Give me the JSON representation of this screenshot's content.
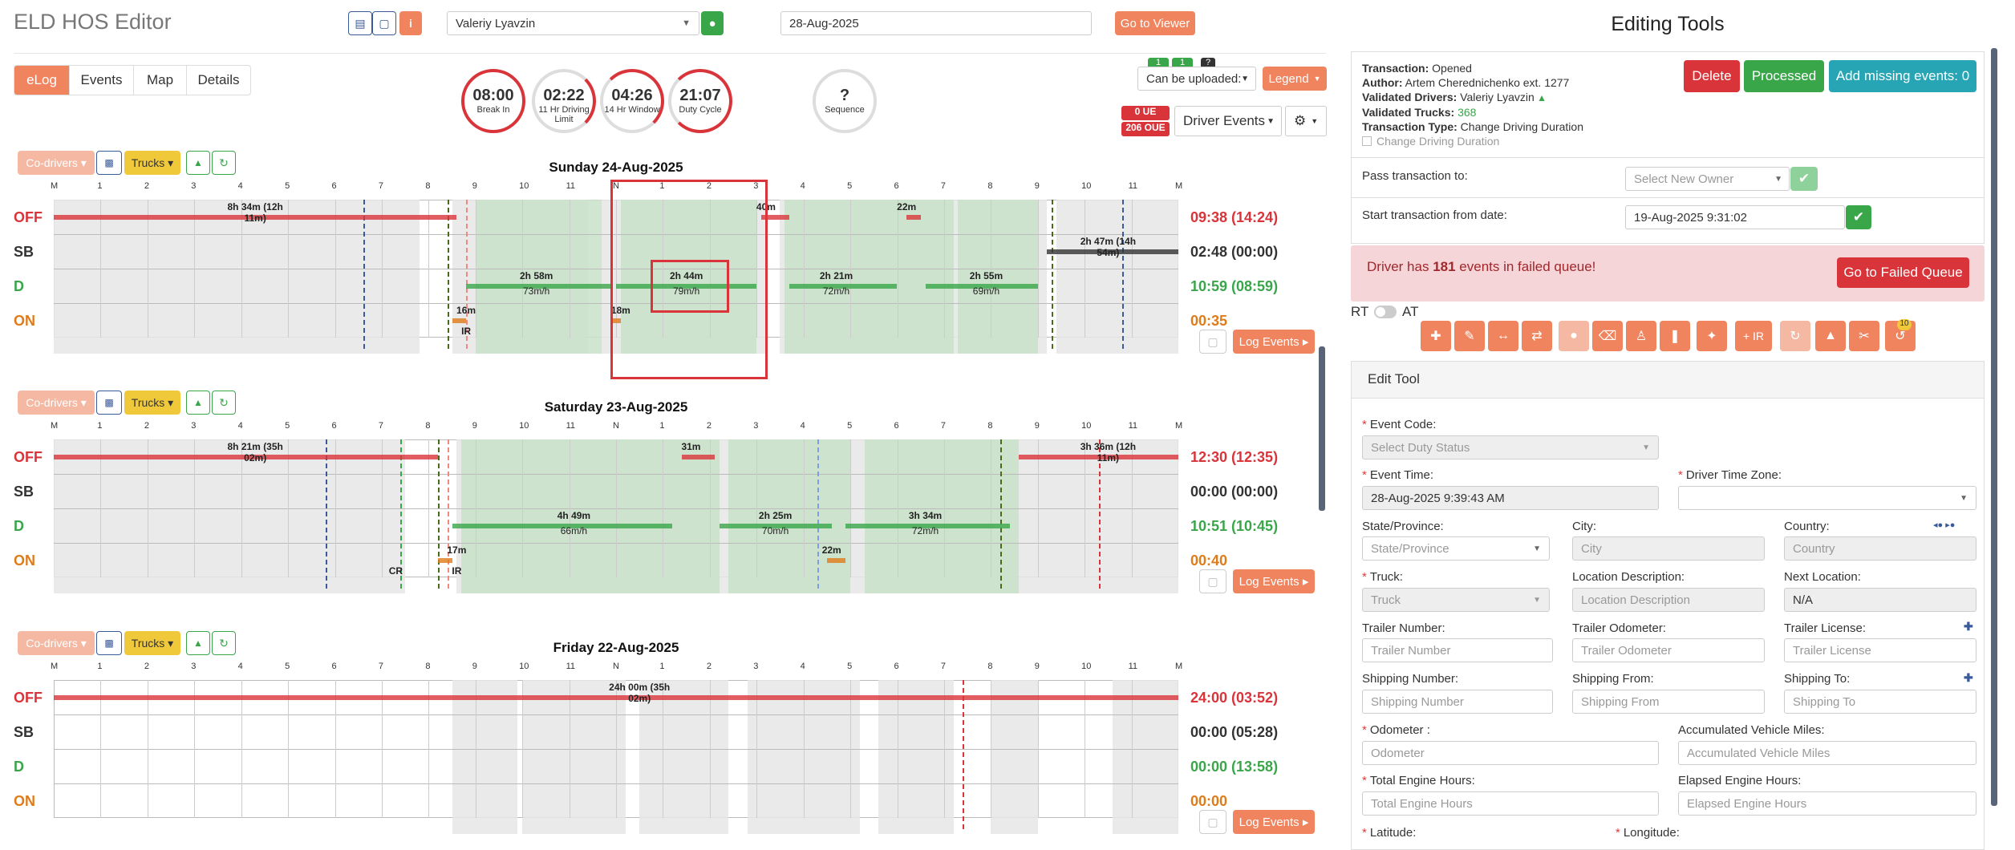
{
  "header": {
    "title": "ELD HOS Editor",
    "driver_select": "Valeriy Lyavzin",
    "date_input": "28-Aug-2025",
    "go_viewer": "Go to Viewer"
  },
  "tabs": [
    "eLog",
    "Events",
    "Map",
    "Details"
  ],
  "counters": [
    {
      "value": "08:00",
      "label": "Break In"
    },
    {
      "value": "02:22",
      "label": "11 Hr Driving Limit"
    },
    {
      "value": "04:26",
      "label": "14 Hr Window"
    },
    {
      "value": "21:07",
      "label": "Duty Cycle"
    },
    {
      "value": "?",
      "label": "Sequence"
    }
  ],
  "upload": {
    "badge1": "1",
    "badge2": "1",
    "badge3": "?",
    "can_be_uploaded": "Can be uploaded:",
    "legend": "Legend",
    "ue": "0 UE",
    "oue": "206 OUE",
    "driver_events": "Driver Events"
  },
  "hour_labels": [
    "M",
    "1",
    "2",
    "3",
    "4",
    "5",
    "6",
    "7",
    "8",
    "9",
    "10",
    "11",
    "N",
    "1",
    "2",
    "3",
    "4",
    "5",
    "6",
    "7",
    "8",
    "9",
    "10",
    "11",
    "M"
  ],
  "status_labels": [
    "OFF",
    "SB",
    "D",
    "ON"
  ],
  "chart_buttons": {
    "codrivers": "Co-drivers",
    "trucks": "Trucks",
    "log_events": "Log Events"
  },
  "days": [
    {
      "title": "Sunday 24-Aug-2025",
      "totals": [
        "09:38 (14:24)",
        "02:48 (00:00)",
        "10:59 (08:59)",
        "00:35"
      ],
      "annotations": [
        "8h 34m (12h 11m)",
        "40m",
        "22m",
        "2h 47m (14h 54m)",
        "2h 58m",
        "73m/h",
        "2h 44m",
        "79m/h",
        "2h 21m",
        "72m/h",
        "2h 55m",
        "69m/h",
        "16m",
        "18m",
        "IR"
      ]
    },
    {
      "title": "Saturday 23-Aug-2025",
      "totals": [
        "12:30 (12:35)",
        "00:00 (00:00)",
        "10:51 (10:45)",
        "00:40"
      ],
      "annotations": [
        "8h 21m (35h 02m)",
        "31m",
        "3h 36m (12h 11m)",
        "4h 49m",
        "66m/h",
        "2h 25m",
        "70m/h",
        "3h 34m",
        "72m/h",
        "17m",
        "22m",
        "CR",
        "IR"
      ]
    },
    {
      "title": "Friday 22-Aug-2025",
      "totals": [
        "24:00 (03:52)",
        "00:00 (05:28)",
        "00:00 (13:58)",
        "00:00"
      ],
      "annotations": [
        "24h 00m (35h 02m)"
      ]
    }
  ],
  "editing": {
    "title": "Editing Tools",
    "transaction": "Opened",
    "author": "Artem Cherednichenko ext. 1277",
    "validated_drivers": "Valeriy Lyavzin",
    "validated_trucks": "368",
    "transaction_type": "Change Driving Duration",
    "checkbox_label": "Change Driving Duration",
    "k_transaction": "Transaction:",
    "k_author": "Author:",
    "k_vdrivers": "Validated Drivers:",
    "k_vtrucks": "Validated Trucks:",
    "k_ttype": "Transaction Type:",
    "delete": "Delete",
    "processed": "Processed",
    "add_missing": "Add missing events: 0",
    "pass_to": "Pass transaction to:",
    "select_owner": "Select New Owner",
    "start_from": "Start transaction from date:",
    "start_date": "19-Aug-2025 9:31:02",
    "failed_pre": "Driver has ",
    "failed_count": "181",
    "failed_post": " events in failed queue!",
    "go_failed": "Go to Failed Queue",
    "rt": "RT",
    "at": "AT",
    "badge": "10",
    "plus_ir": "+ IR"
  },
  "edit_tool": {
    "title": "Edit Tool",
    "event_code": "Event Code:",
    "event_code_ph": "Select Duty Status",
    "event_time": "Event Time:",
    "event_time_val": "28-Aug-2025 9:39:43 AM",
    "driver_tz": "Driver Time Zone:",
    "state": "State/Province:",
    "state_ph": "State/Province",
    "city": "City:",
    "city_ph": "City",
    "country": "Country:",
    "country_ph": "Country",
    "truck": "Truck:",
    "truck_ph": "Truck",
    "loc_desc": "Location Description:",
    "loc_desc_ph": "Location Description",
    "next_loc": "Next Location:",
    "next_loc_val": "N/A",
    "trailer_num": "Trailer Number:",
    "trailer_num_ph": "Trailer Number",
    "trailer_odo": "Trailer Odometer:",
    "trailer_odo_ph": "Trailer Odometer",
    "trailer_lic": "Trailer License:",
    "trailer_lic_ph": "Trailer License",
    "ship_num": "Shipping Number:",
    "ship_num_ph": "Shipping Number",
    "ship_from": "Shipping From:",
    "ship_from_ph": "Shipping From",
    "ship_to": "Shipping To:",
    "ship_to_ph": "Shipping To",
    "odometer": "Odometer :",
    "odometer_ph": "Odometer",
    "acc_miles": "Accumulated Vehicle Miles:",
    "acc_miles_ph": "Accumulated Vehicle Miles",
    "engine_hours": "Total Engine Hours:",
    "engine_hours_ph": "Total Engine Hours",
    "elapsed_hours": "Elapsed Engine Hours:",
    "elapsed_hours_ph": "Elapsed Engine Hours",
    "latitude": "Latitude:",
    "longitude": "Longitude:"
  }
}
